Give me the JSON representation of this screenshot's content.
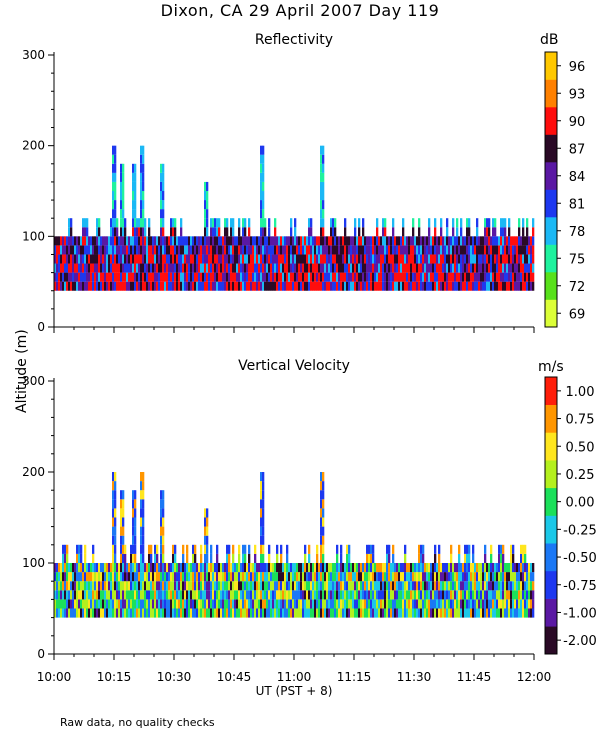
{
  "page_title": "Dixon, CA 29 April 2007  Day 119",
  "y_axis_label": "Altitude (m)",
  "x_axis_label": "UT  (PST + 8)",
  "note": "Raw data, no quality checks",
  "chart_data": [
    {
      "type": "heatmap",
      "title": "Reflectivity",
      "colorbar_unit": "dB",
      "xlabel": "UT  (PST + 8)",
      "ylabel": "Altitude (m)",
      "xlim": [
        "10:00",
        "12:00"
      ],
      "ylim": [
        0,
        300
      ],
      "x_ticks": [
        "10:00",
        "10:15",
        "10:30",
        "10:45",
        "11:00",
        "11:15",
        "11:30",
        "11:45",
        "12:00"
      ],
      "y_ticks": [
        "0",
        "100",
        "200",
        "300"
      ],
      "colorbar_ticks": [
        "69",
        "72",
        "75",
        "78",
        "81",
        "84",
        "87",
        "90",
        "93",
        "96"
      ],
      "colors": [
        "#dcff37",
        "#58e11b",
        "#1ff29e",
        "#1bb8f5",
        "#1d38ef",
        "#5a18a3",
        "#2a0a26",
        "#ff0d0d",
        "#ff8000",
        "#ffc800"
      ],
      "data_band_m": [
        40,
        100
      ],
      "cloud_top_m": 120,
      "plumes": [
        {
          "time": "10:15",
          "top_m": 200
        },
        {
          "time": "10:17",
          "top_m": 180
        },
        {
          "time": "10:20",
          "top_m": 180
        },
        {
          "time": "10:22",
          "top_m": 200
        },
        {
          "time": "10:27",
          "top_m": 180
        },
        {
          "time": "10:38",
          "top_m": 160
        },
        {
          "time": "10:52",
          "top_m": 200
        },
        {
          "time": "11:07",
          "top_m": 200
        }
      ]
    },
    {
      "type": "heatmap",
      "title": "Vertical Velocity",
      "colorbar_unit": "m/s",
      "xlabel": "UT  (PST + 8)",
      "ylabel": "Altitude (m)",
      "xlim": [
        "10:00",
        "12:00"
      ],
      "ylim": [
        0,
        300
      ],
      "x_ticks": [
        "10:00",
        "10:15",
        "10:30",
        "10:45",
        "11:00",
        "11:15",
        "11:30",
        "11:45",
        "12:00"
      ],
      "y_ticks": [
        "0",
        "100",
        "200",
        "300"
      ],
      "colorbar_ticks": [
        "-2.00",
        "-1.00",
        "-0.75",
        "-0.50",
        "-0.25",
        "0.00",
        "0.25",
        "0.50",
        "0.75",
        "1.00"
      ],
      "colors": [
        "#2a0a26",
        "#5a18a3",
        "#1d38ef",
        "#1b78f5",
        "#1bc8e8",
        "#1be05a",
        "#b4f01e",
        "#ffe61e",
        "#ff9600",
        "#ff1e0a"
      ],
      "data_band_m": [
        40,
        100
      ],
      "cloud_top_m": 120,
      "plumes": [
        {
          "time": "10:15",
          "top_m": 200
        },
        {
          "time": "10:17",
          "top_m": 180
        },
        {
          "time": "10:20",
          "top_m": 180
        },
        {
          "time": "10:22",
          "top_m": 200
        },
        {
          "time": "10:27",
          "top_m": 180
        },
        {
          "time": "10:38",
          "top_m": 160
        },
        {
          "time": "10:52",
          "top_m": 200
        },
        {
          "time": "11:07",
          "top_m": 200
        }
      ]
    }
  ]
}
